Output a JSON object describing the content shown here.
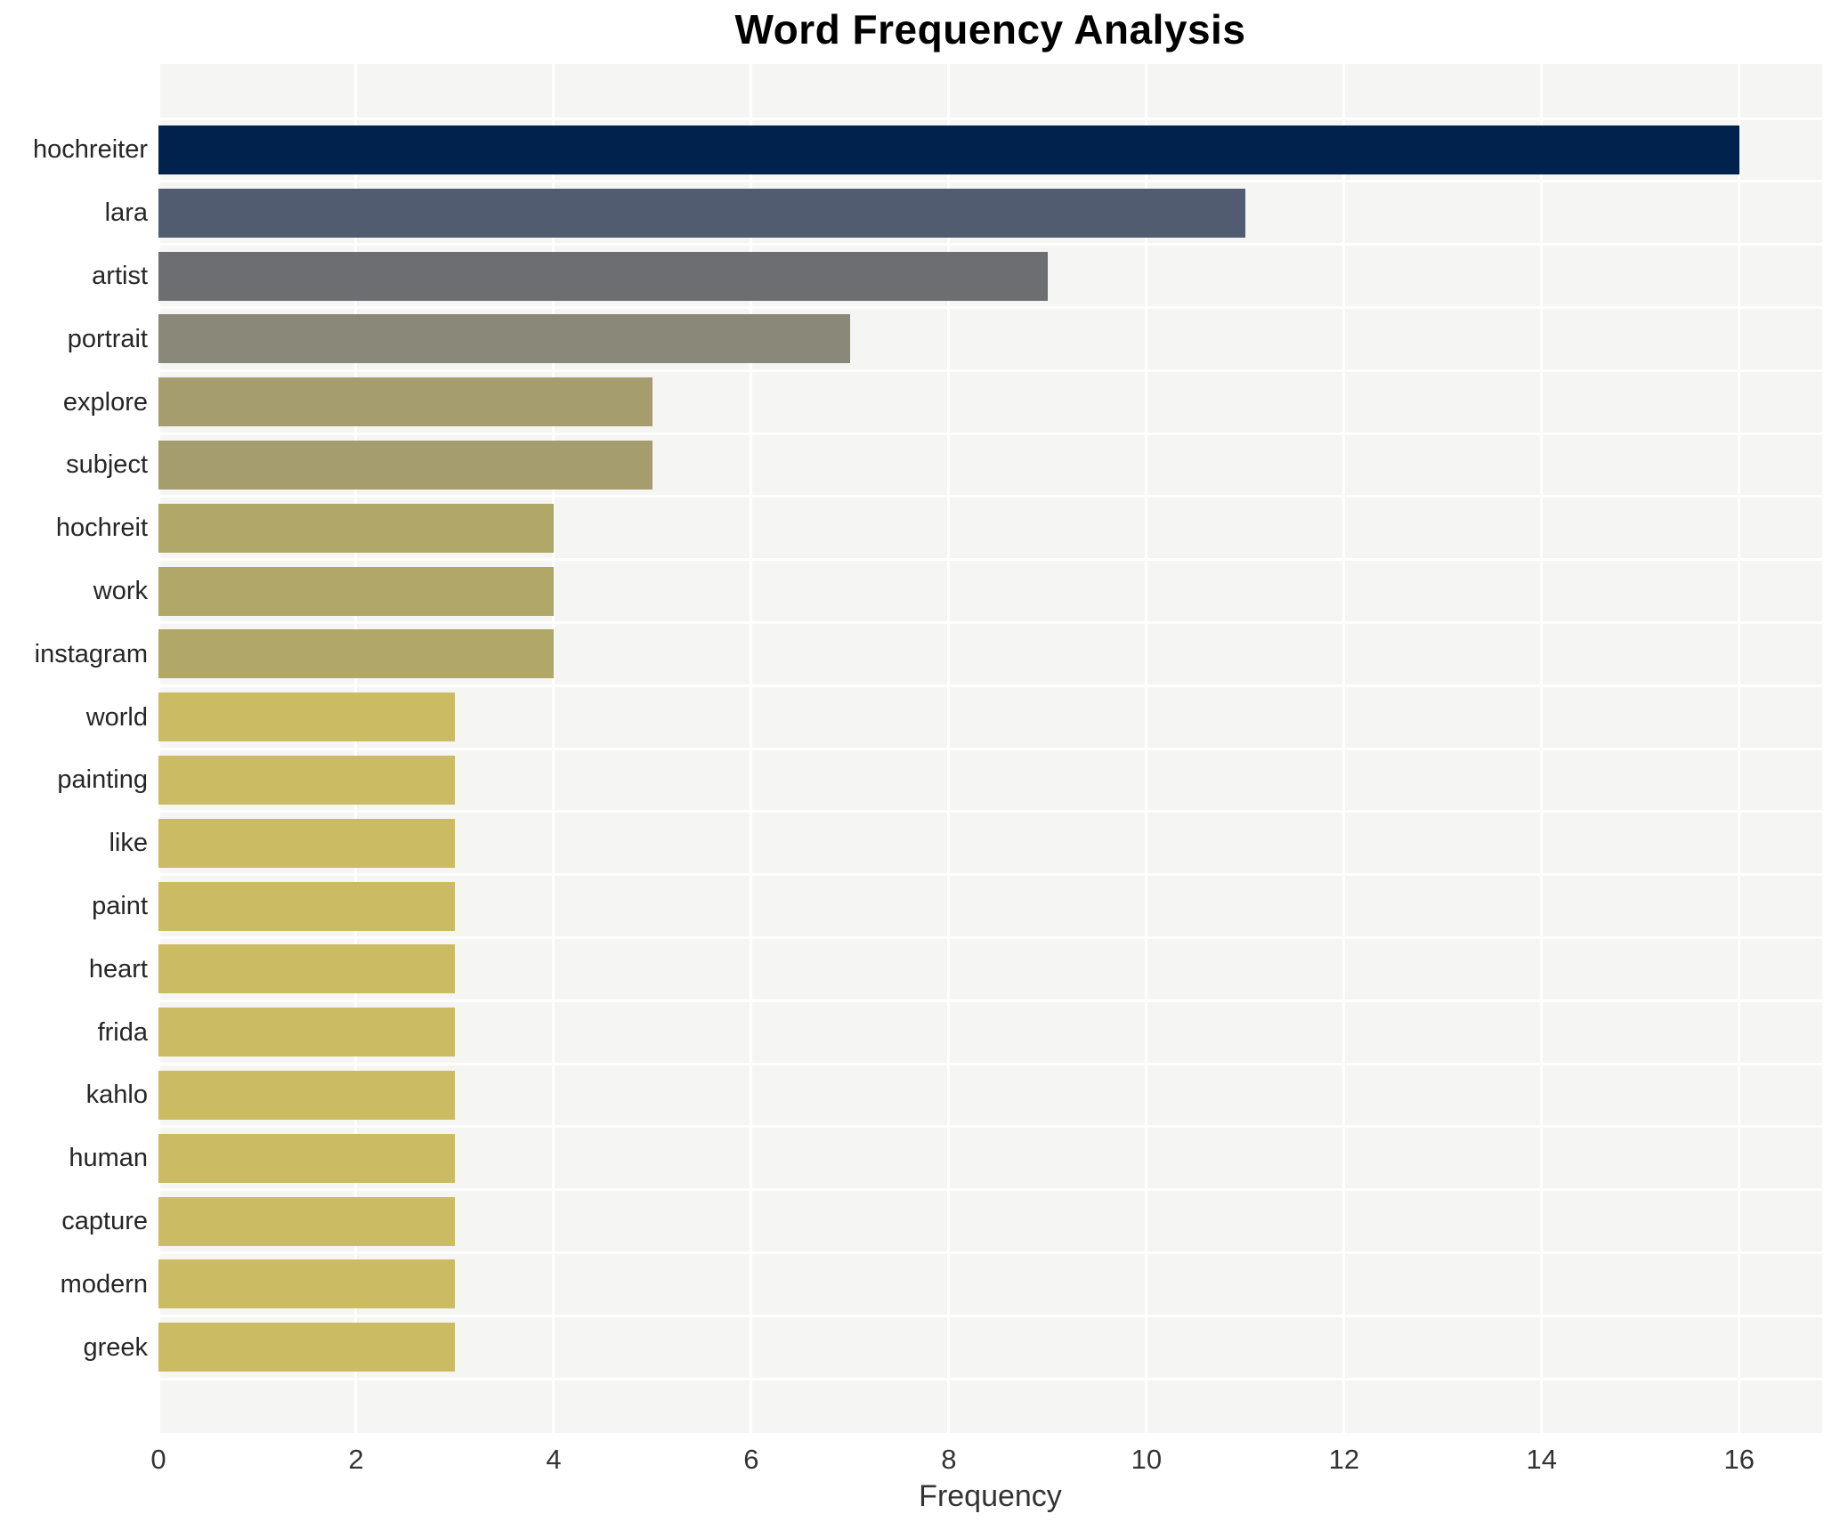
{
  "title": "Word Frequency Analysis",
  "chart_data": {
    "type": "bar",
    "orientation": "horizontal",
    "title": "Word Frequency Analysis",
    "xlabel": "Frequency",
    "ylabel": "",
    "categories": [
      "hochreiter",
      "lara",
      "artist",
      "portrait",
      "explore",
      "subject",
      "hochreit",
      "work",
      "instagram",
      "world",
      "painting",
      "like",
      "paint",
      "heart",
      "frida",
      "kahlo",
      "human",
      "capture",
      "modern",
      "greek"
    ],
    "values": [
      16,
      11,
      9,
      7,
      5,
      5,
      4,
      4,
      4,
      3,
      3,
      3,
      3,
      3,
      3,
      3,
      3,
      3,
      3,
      3
    ],
    "bar_colors": [
      "#00224c",
      "#525c70",
      "#6c6e72",
      "#8a8878",
      "#a59d6d",
      "#a59d6d",
      "#b1a768",
      "#b1a768",
      "#b1a768",
      "#cbbb63",
      "#cbbb63",
      "#cbbb63",
      "#cbbb63",
      "#cbbb63",
      "#cbbb63",
      "#cbbb63",
      "#cbbb63",
      "#cbbb63",
      "#cbbb63",
      "#cbbb63"
    ],
    "xticks": [
      0,
      2,
      4,
      6,
      8,
      10,
      12,
      14,
      16
    ],
    "xlim": [
      0,
      16.84
    ],
    "grid": true,
    "legend": "none",
    "plot_background": "#f5f5f3",
    "grid_color": "#ffffff",
    "figure_background": "#ffffff"
  }
}
